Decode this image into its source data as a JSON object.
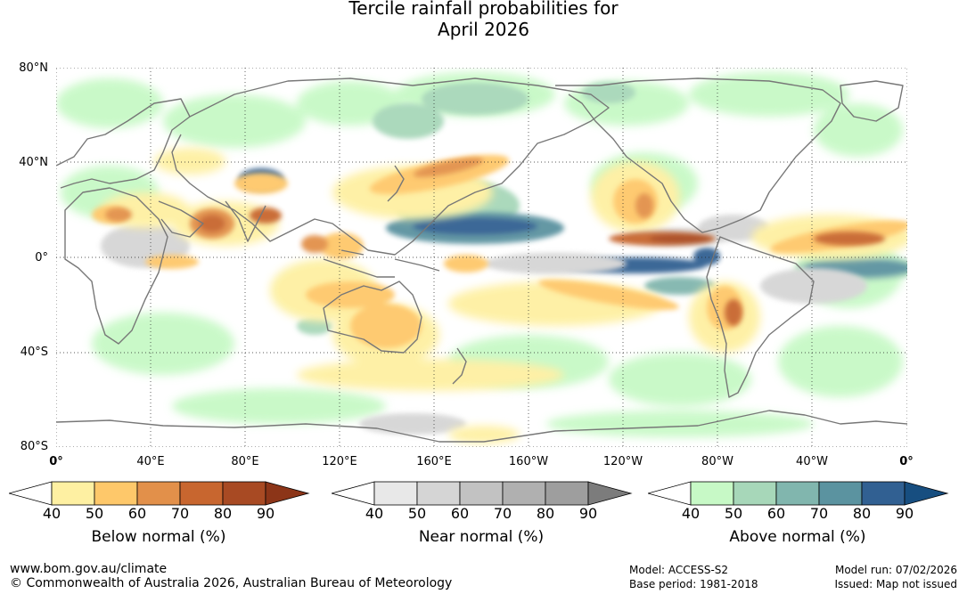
{
  "title": {
    "line1": "Tercile rainfall probabilities for",
    "line2": "April 2026"
  },
  "map": {
    "lat_ticks": [
      "80°N",
      "40°N",
      "0°",
      "40°S",
      "80°S"
    ],
    "lon_ticks": [
      "0°",
      "40°E",
      "80°E",
      "120°E",
      "160°E",
      "160°W",
      "120°W",
      "80°W",
      "40°W",
      "0°"
    ],
    "ocean_color": "#ffffff",
    "coastline_color": "#777777",
    "grid": "dotted"
  },
  "legends": {
    "below": {
      "title": "Below normal (%)",
      "ticks": [
        "40",
        "50",
        "60",
        "70",
        "80",
        "90"
      ],
      "colors": [
        "#ffffff",
        "#fef0a2",
        "#fec86a",
        "#e2904a",
        "#c8662f",
        "#a84a23",
        "#8c3518"
      ]
    },
    "near": {
      "title": "Near normal (%)",
      "ticks": [
        "40",
        "50",
        "60",
        "70",
        "80",
        "90"
      ],
      "colors": [
        "#ffffff",
        "#e8e8e8",
        "#d5d5d5",
        "#c2c2c2",
        "#b0b0b0",
        "#9e9e9e",
        "#7c7c7c"
      ]
    },
    "above": {
      "title": "Above normal (%)",
      "ticks": [
        "40",
        "50",
        "60",
        "70",
        "80",
        "90"
      ],
      "colors": [
        "#ffffff",
        "#c7f9c6",
        "#a7d7b9",
        "#81b6ae",
        "#5b93a0",
        "#316092",
        "#174e80"
      ]
    }
  },
  "footer": {
    "website": "www.bom.gov.au/climate",
    "copyright": "© Commonwealth of Australia 2026, Australian Bureau of Meteorology",
    "model": "Model: ACCESS-S2",
    "base_period": "Base period: 1981-2018",
    "model_run": "Model run: 07/02/2026",
    "issued": "Issued: Map not issued"
  }
}
